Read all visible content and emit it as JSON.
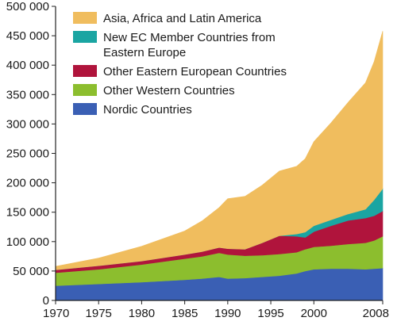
{
  "chart_data": {
    "type": "area",
    "stacked": true,
    "title": "",
    "xlabel": "",
    "ylabel": "",
    "xlim": [
      1970,
      2008
    ],
    "ylim": [
      0,
      500000
    ],
    "grid": false,
    "legend_position": "top-left",
    "x_ticks": [
      "1970",
      "1975",
      "1980",
      "1985",
      "1990",
      "1995",
      "2000",
      "2008"
    ],
    "y_ticks": [
      "0",
      "50 000",
      "100 000",
      "150 000",
      "200 000",
      "250 000",
      "300 000",
      "350 000",
      "400 000",
      "450 000",
      "500 000"
    ],
    "x": [
      1970,
      1975,
      1980,
      1985,
      1987,
      1989,
      1990,
      1992,
      1994,
      1996,
      1998,
      1999,
      2000,
      2002,
      2004,
      2006,
      2007,
      2008
    ],
    "series": [
      {
        "name": "Nordic Countries",
        "color": "#3a5fb4",
        "values": [
          25000,
          28000,
          31000,
          35000,
          37000,
          40000,
          37000,
          38000,
          40000,
          42000,
          46000,
          50000,
          53000,
          54000,
          54000,
          53000,
          54000,
          55000
        ]
      },
      {
        "name": "Other Western Countries",
        "color": "#8cbe2e",
        "values": [
          22000,
          25000,
          30000,
          36000,
          38000,
          41000,
          41000,
          38000,
          37000,
          37000,
          36000,
          37000,
          38000,
          39000,
          42000,
          45000,
          48000,
          54000
        ]
      },
      {
        "name": "Other Eastern European Countries",
        "color": "#b0143c",
        "values": [
          5000,
          6000,
          6000,
          7000,
          8000,
          9000,
          10000,
          11000,
          21000,
          31000,
          27000,
          20000,
          26000,
          34000,
          40000,
          42000,
          42000,
          43000
        ]
      },
      {
        "name": "New EC Member Countries from Eastern Europe",
        "color": "#1aa5a2",
        "values": [
          0,
          0,
          0,
          0,
          0,
          0,
          0,
          0,
          0,
          0,
          4000,
          9000,
          10000,
          10000,
          11000,
          15000,
          27000,
          38000
        ]
      },
      {
        "name": "Asia, Africa and Latin America",
        "color": "#f0bd5e",
        "values": [
          6000,
          13000,
          25000,
          40000,
          52000,
          68000,
          85000,
          90000,
          98000,
          110000,
          115000,
          125000,
          143000,
          165000,
          190000,
          215000,
          235000,
          268000
        ]
      }
    ]
  }
}
